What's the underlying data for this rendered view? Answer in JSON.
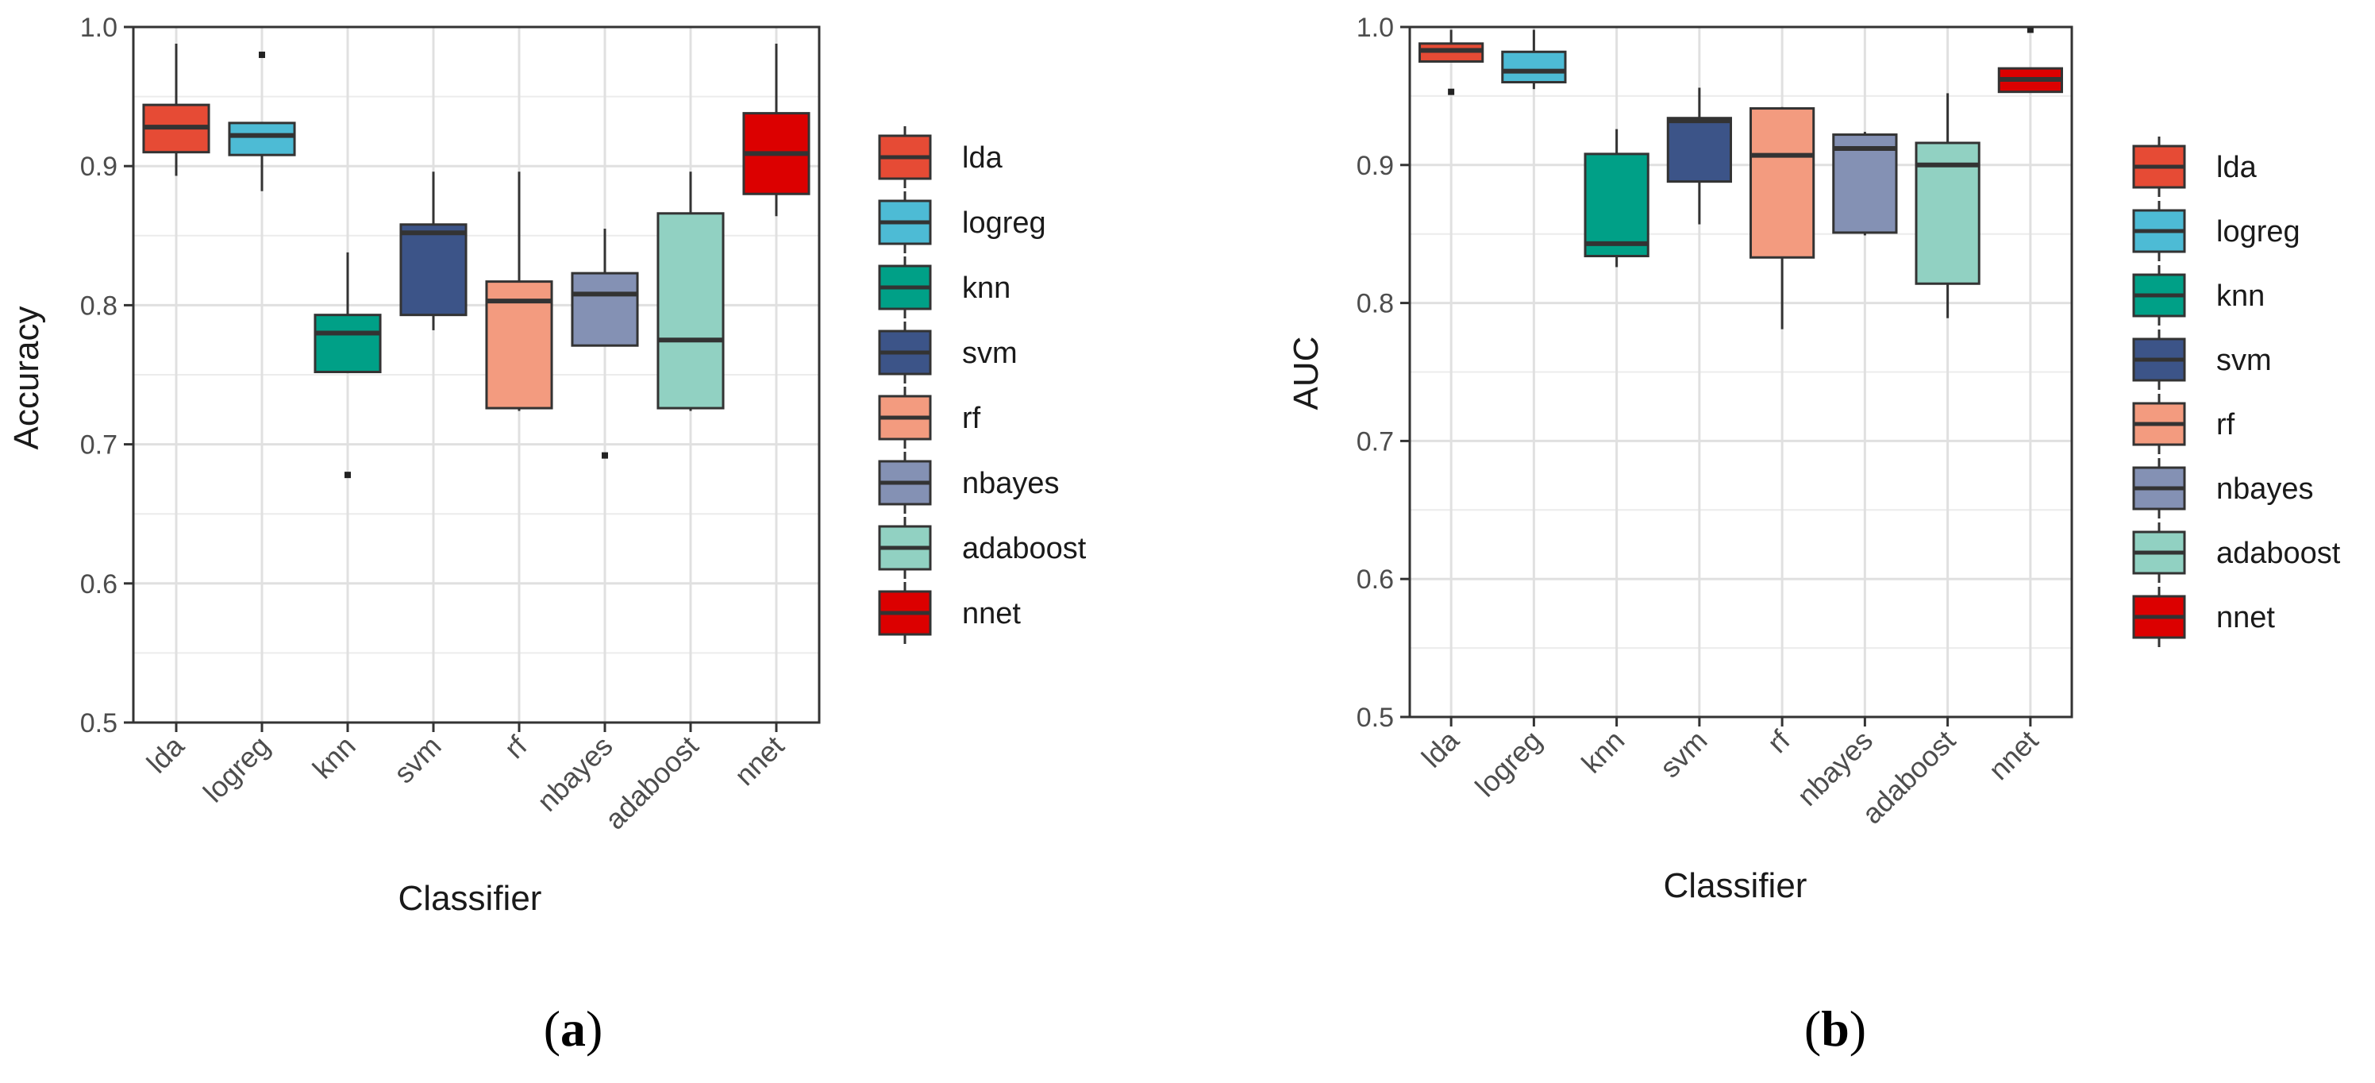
{
  "chart_data": [
    {
      "panel": "a",
      "caption_open": "(",
      "caption_letter": "a",
      "caption_close": ")",
      "type": "box",
      "xlabel": "Classifier",
      "ylabel": "Accuracy",
      "ylim": [
        0.5,
        1.0
      ],
      "yticks": [
        0.5,
        0.6,
        0.7,
        0.8,
        0.9,
        1.0
      ],
      "ytick_labels": [
        "0.5",
        "0.6",
        "0.7",
        "0.8",
        "0.9",
        "1.0"
      ],
      "categories": [
        "lda",
        "logreg",
        "knn",
        "svm",
        "rf",
        "nbayes",
        "adaboost",
        "nnet"
      ],
      "legend": [
        "lda",
        "logreg",
        "knn",
        "svm",
        "rf",
        "nbayes",
        "adaboost",
        "nnet"
      ],
      "colors": [
        "#e64b35",
        "#4dbbd5",
        "#00a087",
        "#3c5488",
        "#f39b7f",
        "#8491b4",
        "#91d1c2",
        "#dc0000"
      ],
      "series": [
        {
          "name": "lda",
          "whisker_low": 0.893,
          "q1": 0.91,
          "median": 0.928,
          "q3": 0.944,
          "whisker_high": 0.988,
          "outliers": []
        },
        {
          "name": "logreg",
          "whisker_low": 0.882,
          "q1": 0.908,
          "median": 0.922,
          "q3": 0.931,
          "whisker_high": 0.931,
          "outliers": [
            0.98
          ]
        },
        {
          "name": "knn",
          "whisker_low": 0.752,
          "q1": 0.752,
          "median": 0.78,
          "q3": 0.793,
          "whisker_high": 0.838,
          "outliers": [
            0.678
          ]
        },
        {
          "name": "svm",
          "whisker_low": 0.782,
          "q1": 0.793,
          "median": 0.852,
          "q3": 0.858,
          "whisker_high": 0.896,
          "outliers": []
        },
        {
          "name": "rf",
          "whisker_low": 0.724,
          "q1": 0.726,
          "median": 0.803,
          "q3": 0.817,
          "whisker_high": 0.896,
          "outliers": []
        },
        {
          "name": "nbayes",
          "whisker_low": 0.771,
          "q1": 0.771,
          "median": 0.808,
          "q3": 0.823,
          "whisker_high": 0.855,
          "outliers": [
            0.692
          ]
        },
        {
          "name": "adaboost",
          "whisker_low": 0.724,
          "q1": 0.726,
          "median": 0.775,
          "q3": 0.866,
          "whisker_high": 0.896,
          "outliers": []
        },
        {
          "name": "nnet",
          "whisker_low": 0.864,
          "q1": 0.88,
          "median": 0.909,
          "q3": 0.938,
          "whisker_high": 0.988,
          "outliers": []
        }
      ]
    },
    {
      "panel": "b",
      "caption_open": "(",
      "caption_letter": "b",
      "caption_close": ")",
      "type": "box",
      "xlabel": "Classifier",
      "ylabel": "AUC",
      "ylim": [
        0.5,
        1.0
      ],
      "yticks": [
        0.5,
        0.6,
        0.7,
        0.8,
        0.9,
        1.0
      ],
      "ytick_labels": [
        "0.5",
        "0.6",
        "0.7",
        "0.8",
        "0.9",
        "1.0"
      ],
      "categories": [
        "lda",
        "logreg",
        "knn",
        "svm",
        "rf",
        "nbayes",
        "adaboost",
        "nnet"
      ],
      "legend": [
        "lda",
        "logreg",
        "knn",
        "svm",
        "rf",
        "nbayes",
        "adaboost",
        "nnet"
      ],
      "colors": [
        "#e64b35",
        "#4dbbd5",
        "#00a087",
        "#3c5488",
        "#f39b7f",
        "#8491b4",
        "#91d1c2",
        "#dc0000"
      ],
      "series": [
        {
          "name": "lda",
          "whisker_low": 0.975,
          "q1": 0.975,
          "median": 0.983,
          "q3": 0.988,
          "whisker_high": 0.998,
          "outliers": [
            0.953
          ]
        },
        {
          "name": "logreg",
          "whisker_low": 0.955,
          "q1": 0.96,
          "median": 0.968,
          "q3": 0.982,
          "whisker_high": 0.998,
          "outliers": []
        },
        {
          "name": "knn",
          "whisker_low": 0.826,
          "q1": 0.834,
          "median": 0.843,
          "q3": 0.908,
          "whisker_high": 0.926,
          "outliers": []
        },
        {
          "name": "svm",
          "whisker_low": 0.857,
          "q1": 0.888,
          "median": 0.932,
          "q3": 0.934,
          "whisker_high": 0.956,
          "outliers": []
        },
        {
          "name": "rf",
          "whisker_low": 0.781,
          "q1": 0.833,
          "median": 0.907,
          "q3": 0.941,
          "whisker_high": 0.942,
          "outliers": []
        },
        {
          "name": "nbayes",
          "whisker_low": 0.849,
          "q1": 0.851,
          "median": 0.912,
          "q3": 0.922,
          "whisker_high": 0.924,
          "outliers": []
        },
        {
          "name": "adaboost",
          "whisker_low": 0.789,
          "q1": 0.814,
          "median": 0.9,
          "q3": 0.916,
          "whisker_high": 0.952,
          "outliers": []
        },
        {
          "name": "nnet",
          "whisker_low": 0.953,
          "q1": 0.953,
          "median": 0.962,
          "q3": 0.97,
          "whisker_high": 0.97,
          "outliers": [
            0.998
          ]
        }
      ]
    }
  ]
}
